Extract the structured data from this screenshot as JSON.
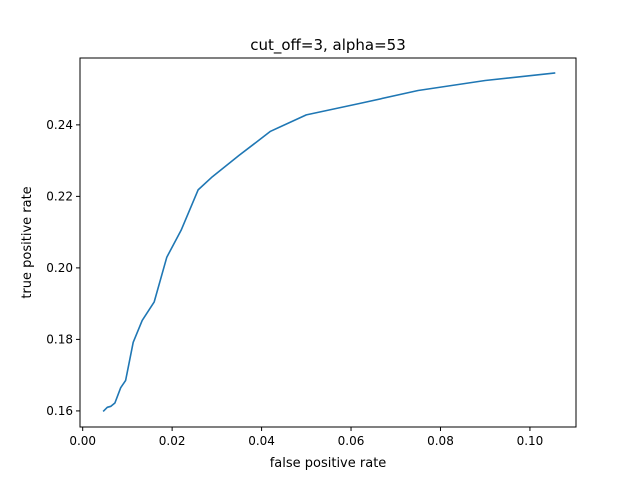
{
  "chart_data": {
    "type": "line",
    "title": "cut_off=3, alpha=53",
    "xlabel": "false positive rate",
    "ylabel": "true positive rate",
    "xlim": [
      -0.0006,
      0.1103
    ],
    "ylim": [
      0.1555,
      0.2587
    ],
    "xticks": [
      0.0,
      0.02,
      0.04,
      0.06,
      0.08,
      0.1
    ],
    "xtick_labels": [
      "0.00",
      "0.02",
      "0.04",
      "0.06",
      "0.08",
      "0.10"
    ],
    "yticks": [
      0.16,
      0.18,
      0.2,
      0.22,
      0.24
    ],
    "ytick_labels": [
      "0.16",
      "0.18",
      "0.20",
      "0.22",
      "0.24"
    ],
    "grid": false,
    "series": [
      {
        "color": "#1f77b4",
        "x": [
          0.0047,
          0.0055,
          0.0063,
          0.0072,
          0.0085,
          0.0096,
          0.0113,
          0.0133,
          0.016,
          0.0188,
          0.022,
          0.0258,
          0.029,
          0.035,
          0.042,
          0.05,
          0.062,
          0.075,
          0.09,
          0.1055
        ],
        "y": [
          0.16,
          0.161,
          0.1613,
          0.1622,
          0.1665,
          0.1685,
          0.1792,
          0.1853,
          0.1905,
          0.203,
          0.2105,
          0.2218,
          0.2255,
          0.2315,
          0.2382,
          0.2428,
          0.246,
          0.2496,
          0.2524,
          0.2545
        ]
      }
    ]
  }
}
